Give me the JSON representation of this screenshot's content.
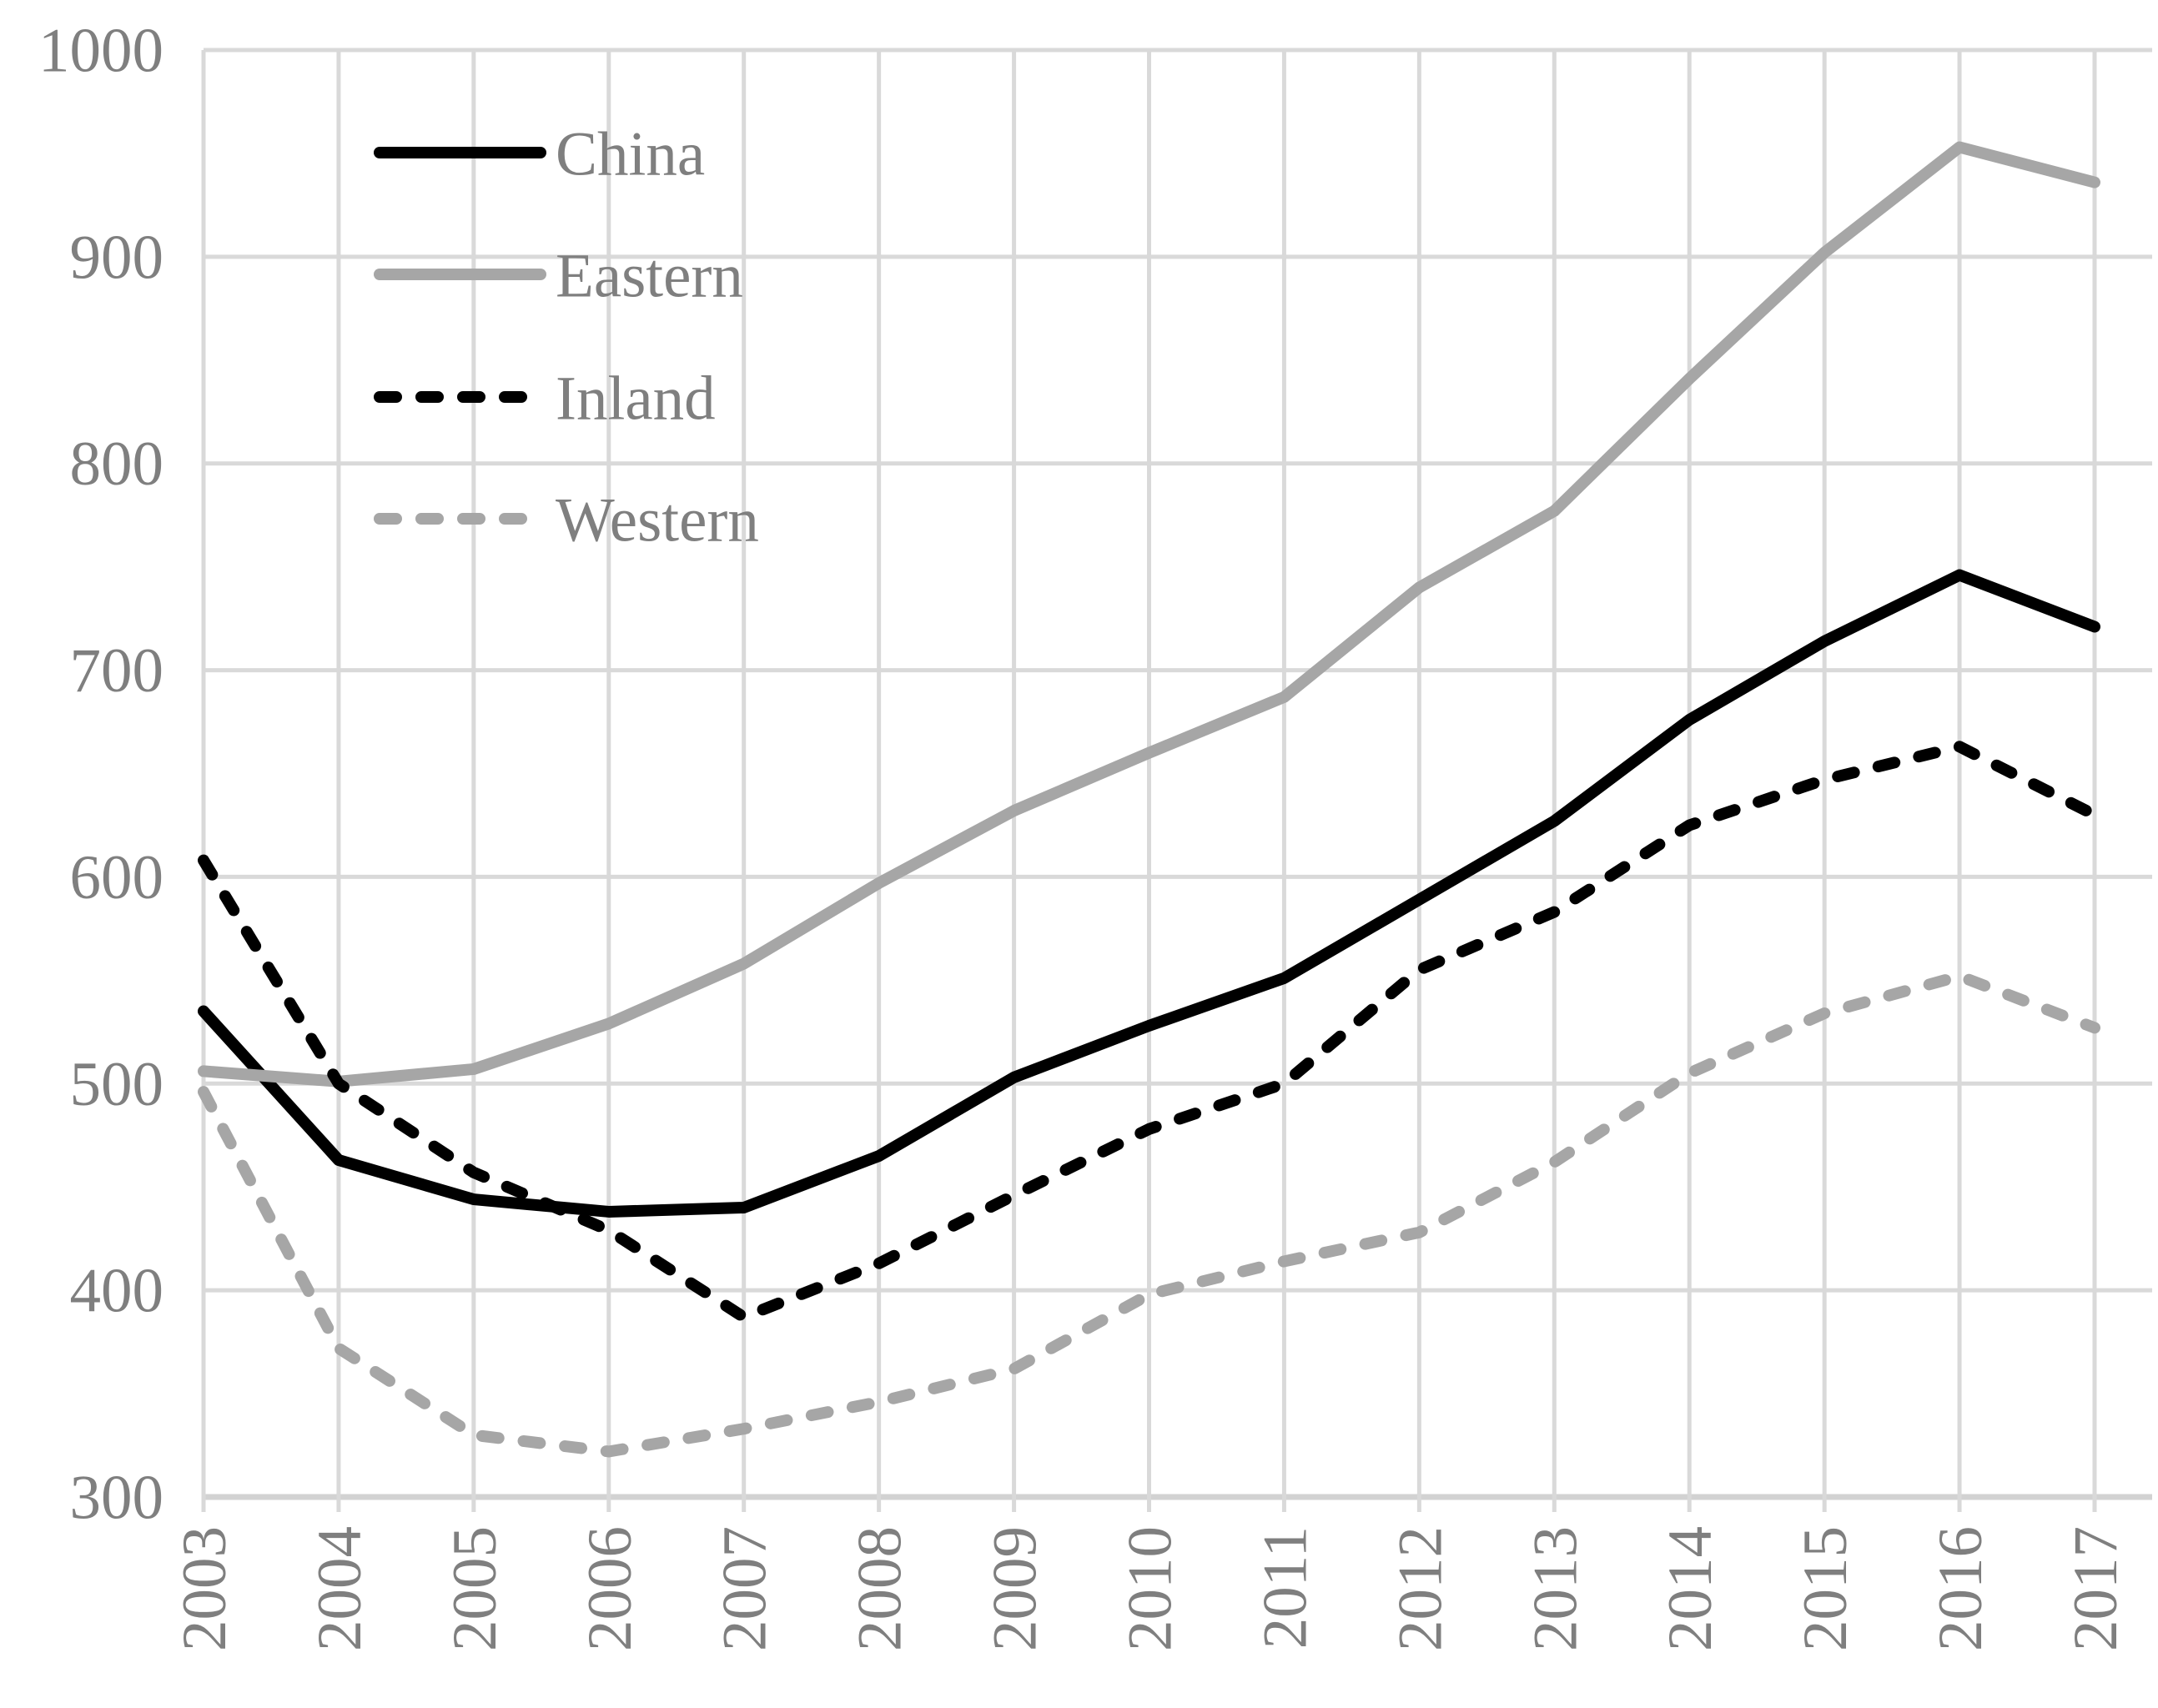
{
  "chart_data": {
    "type": "line",
    "title": "",
    "xlabel": "",
    "ylabel": "",
    "x": [
      2003,
      2004,
      2005,
      2006,
      2007,
      2008,
      2009,
      2010,
      2011,
      2012,
      2013,
      2014,
      2015,
      2016,
      2017
    ],
    "x_tick_labels": [
      "2003",
      "2004",
      "2005",
      "2006",
      "2007",
      "2008",
      "2009",
      "2010",
      "2011",
      "2012",
      "2013",
      "2014",
      "2015",
      "2016",
      "2017"
    ],
    "y_tick_labels": [
      "1000",
      "900",
      "800",
      "700",
      "600",
      "500",
      "400",
      "300"
    ],
    "yticks": [
      1000,
      900,
      800,
      700,
      600,
      500,
      400,
      300
    ],
    "ylim": [
      300,
      1000
    ],
    "grid": true,
    "legend_position": "top-left",
    "series": [
      {
        "name": "China",
        "color": "#000000",
        "style": "solid",
        "values": [
          535,
          463,
          444,
          438,
          440,
          465,
          503,
          528,
          551,
          589,
          627,
          676,
          714,
          746,
          721
        ]
      },
      {
        "name": "Eastern",
        "color": "#a6a6a6",
        "style": "solid",
        "values": [
          506,
          501,
          507,
          529,
          558,
          597,
          632,
          660,
          687,
          740,
          777,
          841,
          902,
          953,
          936
        ]
      },
      {
        "name": "Inland",
        "color": "#000000",
        "style": "dashed",
        "values": [
          608,
          500,
          457,
          429,
          387,
          413,
          446,
          478,
          500,
          555,
          583,
          625,
          647,
          663,
          630
        ]
      },
      {
        "name": "Western",
        "color": "#a6a6a6",
        "style": "dashed",
        "values": [
          496,
          372,
          330,
          322,
          333,
          346,
          362,
          398,
          414,
          428,
          462,
          505,
          534,
          552,
          527
        ]
      }
    ],
    "colors": {
      "gridline": "#d9d9d9",
      "axis_line": "#d2d2d2",
      "axis_text": "#7f7f7f",
      "legend_text": "#7f7f7f",
      "background": "#ffffff"
    }
  }
}
